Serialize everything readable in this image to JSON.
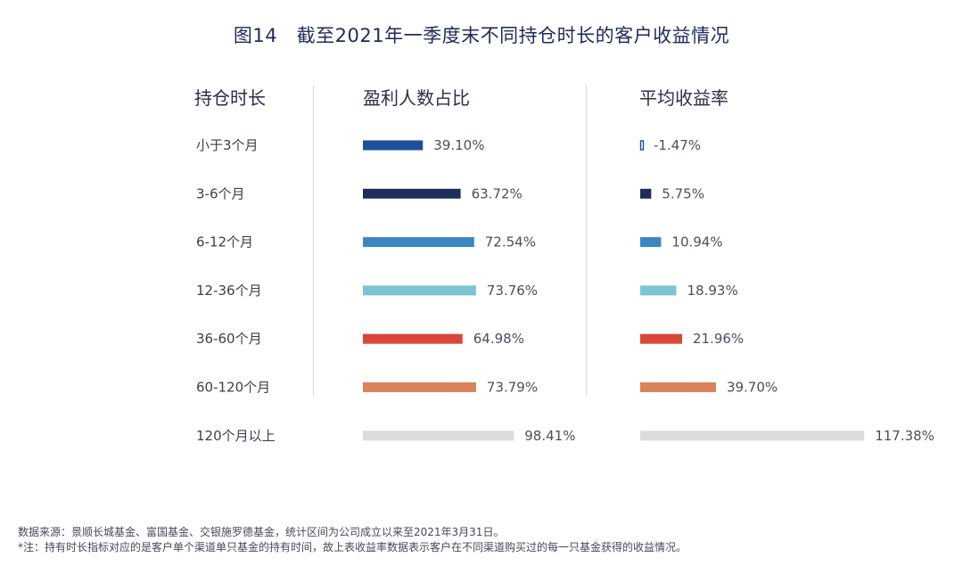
{
  "title": "图14　截至2021年一季度末不同持仓时长的客户收益情况",
  "headers": {
    "duration": "持仓时长",
    "profit_ratio": "盈利人数占比",
    "avg_return": "平均收益率"
  },
  "chart_data": {
    "type": "bar",
    "orientation": "horizontal",
    "categories": [
      "小于3个月",
      "3-6个月",
      "6-12个月",
      "12-36个月",
      "36-60个月",
      "60-120个月",
      "120个月以上"
    ],
    "series": [
      {
        "name": "盈利人数占比",
        "values": [
          39.1,
          63.72,
          72.54,
          73.76,
          64.98,
          73.79,
          98.41
        ],
        "labels": [
          "39.10%",
          "63.72%",
          "72.54%",
          "73.76%",
          "64.98%",
          "73.79%",
          "98.41%"
        ]
      },
      {
        "name": "平均收益率",
        "values": [
          -1.47,
          5.75,
          10.94,
          18.93,
          21.96,
          39.7,
          117.38
        ],
        "labels": [
          "-1.47%",
          "5.75%",
          "10.94%",
          "18.93%",
          "21.96%",
          "39.70%",
          "117.38%"
        ]
      }
    ],
    "colors": [
      "#1f4e9c",
      "#1f2d5c",
      "#3a86c2",
      "#7cc4d4",
      "#d9473a",
      "#d9845a",
      "#dcdce0"
    ],
    "negative_style": "outline"
  },
  "footer": {
    "source": "数据来源：景顺长城基金、富国基金、交银施罗德基金，统计区间为公司成立以来至2021年3月31日。",
    "note": "*注：持有时长指标对应的是客户单个渠道单只基金的持有时间，故上表收益率数据表示客户在不同渠道购买过的每一只基金获得的收益情况。"
  }
}
